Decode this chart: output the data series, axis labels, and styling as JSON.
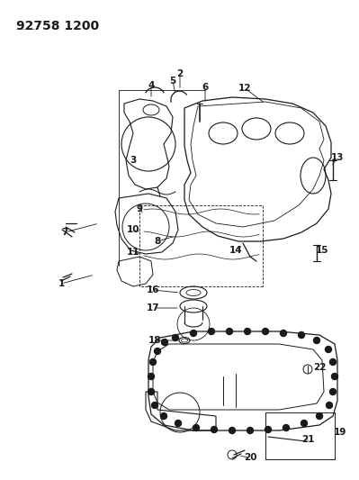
{
  "title": "92758 1200",
  "bg_color": "#ffffff",
  "line_color": "#1a1a1a",
  "title_fontsize": 10,
  "label_fontsize": 7.5
}
